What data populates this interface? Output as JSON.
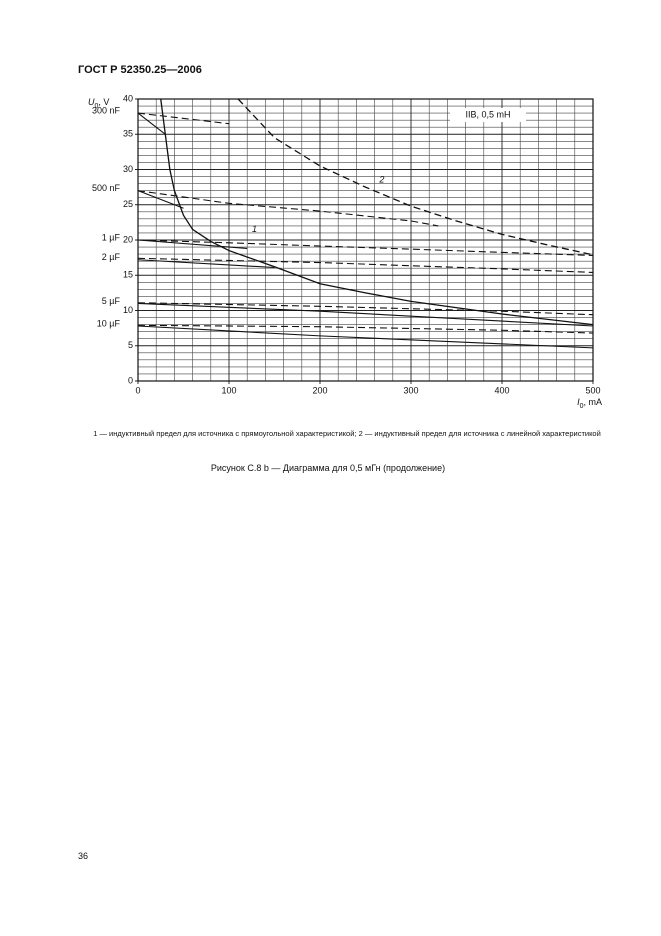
{
  "header": {
    "title": "ГОСТ Р 52350.25—2006"
  },
  "chart_data": {
    "type": "line",
    "annotation": "IIB, 0,5 mH",
    "ylabel": {
      "main": "U",
      "sub": "0",
      "unit": ", V"
    },
    "xlabel": {
      "main": "I",
      "sub": "0",
      "unit": ", mA"
    },
    "xlim": [
      0,
      500
    ],
    "ylim": [
      0,
      40
    ],
    "xticks": [
      0,
      100,
      200,
      300,
      400,
      500
    ],
    "yticks": [
      0,
      5,
      10,
      15,
      20,
      25,
      30,
      35,
      40
    ],
    "grid": true,
    "limit_curves": [
      {
        "name": "1",
        "label_at": [
          128,
          21.5
        ],
        "dashed": false,
        "x": [
          25,
          30,
          35,
          40,
          50,
          60,
          80,
          100,
          150,
          200,
          250,
          300,
          400,
          500
        ],
        "values": [
          40,
          35,
          30,
          27,
          23.5,
          21.5,
          19.8,
          18.5,
          16.2,
          13.8,
          12.5,
          11.3,
          9.5,
          8
        ]
      },
      {
        "name": "2",
        "label_at": [
          268,
          28.5
        ],
        "dashed": true,
        "x": [
          110,
          150,
          200,
          250,
          300,
          350,
          400,
          450,
          500
        ],
        "values": [
          40,
          34.5,
          30.5,
          27.5,
          24.8,
          22.7,
          20.8,
          19.3,
          17.9
        ]
      }
    ],
    "series": [
      {
        "name": "300 nF",
        "x": [
          0,
          30
        ],
        "values": [
          38,
          35
        ],
        "dashed_x": [
          0,
          100
        ],
        "dashed_values": [
          38,
          36.5
        ]
      },
      {
        "name": "500 nF",
        "x": [
          0,
          50
        ],
        "values": [
          27,
          24.5
        ],
        "dashed_x": [
          0,
          100,
          200,
          300,
          330
        ],
        "dashed_values": [
          27,
          25.2,
          24.1,
          22.7,
          22
        ]
      },
      {
        "name": "1 µF",
        "x": [
          0,
          120
        ],
        "values": [
          20,
          18.8
        ],
        "dashed_x": [
          0,
          100,
          300,
          500
        ],
        "dashed_values": [
          20,
          19.6,
          18.7,
          17.8
        ]
      },
      {
        "name": "2 µF",
        "x": [
          0,
          150
        ],
        "values": [
          17.2,
          16.1
        ],
        "dashed_x": [
          0,
          200,
          400,
          500
        ],
        "dashed_values": [
          17.4,
          16.8,
          15.9,
          15.4
        ]
      },
      {
        "name": "5 µF",
        "x": [
          0,
          200,
          500
        ],
        "values": [
          11,
          9.9,
          7.8
        ],
        "dashed_x": [
          0,
          200,
          400,
          500
        ],
        "dashed_values": [
          11.1,
          10.6,
          9.9,
          9.4
        ]
      },
      {
        "name": "10 µF",
        "x": [
          0,
          200,
          500
        ],
        "values": [
          7.8,
          6.4,
          4.7
        ],
        "dashed_x": [
          0,
          200,
          400,
          500
        ],
        "dashed_values": [
          7.9,
          7.7,
          7.2,
          6.8
        ]
      }
    ]
  },
  "footnote": "1 — индуктивный предел для источника с прямоугольной характеристикой; 2 — индуктивный предел для источника с линейной характеристикой",
  "caption": "Рисунок С.8 b — Диаграмма для 0,5 мГн (продолжение)",
  "page_number": "36"
}
